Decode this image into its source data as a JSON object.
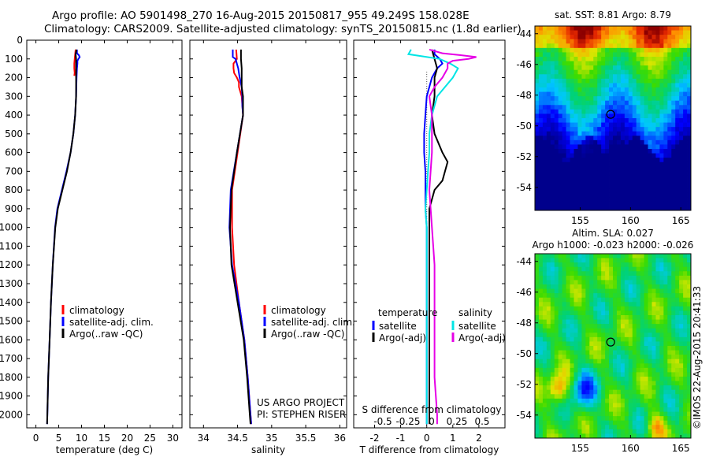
{
  "header": {
    "line1": "Argo profile: AO 5901498_270 16-Aug-2015 20150817_955 49.249S 158.028E",
    "line2": "Climatology: CARS2009. Satellite-adjusted climatology: synTS_20150815.nc (1.8d earlier)"
  },
  "timestamp": "©IMOS 22-Aug-2015 20:41:33",
  "colors": {
    "climatology": "#ff0000",
    "satellite": "#0000ff",
    "argo": "#000000",
    "sat_salinity": "#00e5e5",
    "argo_adj_salinity": "#e600e6"
  },
  "depth_axis": {
    "ticks": [
      0,
      100,
      200,
      300,
      400,
      500,
      600,
      700,
      800,
      900,
      1000,
      1100,
      1200,
      1300,
      1400,
      1500,
      1600,
      1700,
      1800,
      1900,
      2000
    ],
    "ylim": [
      0,
      2070
    ]
  },
  "chart_data": [
    {
      "type": "line",
      "id": "temperature",
      "xlabel": "temperature (deg C)",
      "xlim": [
        -2,
        32
      ],
      "xticks": [
        0,
        5,
        10,
        15,
        20,
        25,
        30
      ],
      "legend": [
        "climatology",
        "satellite-adj. clim.",
        "Argo(..raw -QC)"
      ],
      "series": [
        {
          "key": "climatology",
          "depth": [
            50,
            75,
            100,
            125,
            150,
            175,
            190
          ],
          "values": [
            8.7,
            8.6,
            8.5,
            8.4,
            8.4,
            8.5,
            8.4
          ]
        },
        {
          "key": "satellite",
          "depth": [
            50,
            70,
            80,
            90,
            100,
            110,
            125,
            150,
            200,
            300,
            400,
            500,
            600,
            700,
            800,
            900,
            1000,
            1200,
            1400,
            1600,
            1800,
            2000,
            2050
          ],
          "values": [
            9.0,
            9.0,
            9.4,
            9.6,
            9.3,
            9.1,
            9.1,
            9.0,
            8.9,
            8.8,
            8.6,
            8.2,
            7.6,
            6.7,
            5.7,
            4.7,
            4.2,
            3.7,
            3.3,
            3.0,
            2.7,
            2.5,
            2.45
          ]
        },
        {
          "key": "argo",
          "depth": [
            50,
            75,
            100,
            150,
            200,
            300,
            400,
            500,
            600,
            700,
            800,
            900,
            1000,
            1200,
            1400,
            1600,
            1800,
            2000,
            2050
          ],
          "values": [
            8.9,
            8.7,
            8.8,
            8.8,
            8.8,
            8.8,
            8.6,
            8.2,
            7.6,
            6.8,
            5.8,
            4.8,
            4.25,
            3.7,
            3.3,
            3.0,
            2.7,
            2.5,
            2.45
          ]
        }
      ]
    },
    {
      "type": "line",
      "id": "salinity",
      "xlabel": "salinity",
      "xlim": [
        33.8,
        36.1
      ],
      "xticks": [
        34,
        34.5,
        35,
        35.5,
        36
      ],
      "legend": [
        "climatology",
        "satellite-adj. clim.",
        "Argo(..raw -QC)"
      ],
      "annotations": [
        "US ARGO PROJECT",
        "PI: STEPHEN RISER"
      ],
      "series": [
        {
          "key": "climatology",
          "depth": [
            50,
            100,
            125,
            150,
            175,
            200,
            225,
            250,
            300,
            400,
            600,
            800,
            1000,
            1200,
            1400,
            1600,
            1800,
            2000,
            2050
          ],
          "values": [
            34.48,
            34.49,
            34.44,
            34.44,
            34.45,
            34.49,
            34.52,
            34.52,
            34.56,
            34.58,
            34.5,
            34.42,
            34.42,
            34.45,
            34.52,
            34.6,
            34.65,
            34.69,
            34.7
          ]
        },
        {
          "key": "satellite",
          "depth": [
            50,
            80,
            90,
            100,
            150,
            200,
            250,
            300,
            350,
            400,
            600,
            800,
            1000,
            1200,
            1400,
            1600,
            1800,
            2000,
            2050
          ],
          "values": [
            34.43,
            34.43,
            34.43,
            34.47,
            34.51,
            34.53,
            34.56,
            34.57,
            34.57,
            34.58,
            34.49,
            34.4,
            34.38,
            34.42,
            34.52,
            34.6,
            34.65,
            34.69,
            34.7
          ]
        },
        {
          "key": "argo",
          "depth": [
            50,
            100,
            150,
            200,
            250,
            300,
            350,
            400,
            600,
            800,
            1000,
            1200,
            1400,
            1600,
            1800,
            2000,
            2050
          ],
          "values": [
            34.55,
            34.55,
            34.56,
            34.56,
            34.56,
            34.58,
            34.58,
            34.58,
            34.49,
            34.41,
            34.39,
            34.41,
            34.5,
            34.59,
            34.64,
            34.68,
            34.69
          ]
        }
      ]
    },
    {
      "type": "line",
      "id": "difference",
      "xlabel": "T difference from climatology",
      "xlim": [
        -2.8,
        3.0
      ],
      "xticks": [
        -2,
        -1,
        0,
        1,
        2
      ],
      "top_label": "S difference from climatology",
      "top_ticks": [
        "-0.5",
        "-0.25",
        "0",
        "0.25",
        "0.5"
      ],
      "legend": {
        "temperature_title": "temperature",
        "salinity_title": "salinity",
        "temperature": [
          "satellite",
          "Argo(-adj)"
        ],
        "salinity": [
          "satellite",
          "Argo(-adj)"
        ]
      },
      "series": [
        {
          "key": "satellite",
          "depth": [
            50,
            75,
            100,
            125,
            150,
            200,
            300,
            400,
            500,
            600,
            700,
            800,
            900,
            1000,
            1200,
            1400,
            1600,
            1800,
            2000,
            2050
          ],
          "values": [
            0.3,
            0.3,
            0.5,
            0.6,
            0.4,
            0.2,
            0.0,
            -0.05,
            -0.1,
            -0.1,
            -0.05,
            -0.05,
            -0.05,
            0.0,
            0.0,
            0.0,
            0.0,
            0.0,
            0.0,
            0.0
          ]
        },
        {
          "key": "argo",
          "depth": [
            50,
            100,
            150,
            200,
            300,
            400,
            500,
            600,
            650,
            700,
            750,
            800,
            900,
            1000,
            1200,
            1400,
            1600,
            1800,
            2000,
            2050
          ],
          "values": [
            0.2,
            0.3,
            0.4,
            0.3,
            0.3,
            0.2,
            0.3,
            0.6,
            0.8,
            0.7,
            0.6,
            0.3,
            0.1,
            0.1,
            0.1,
            0.1,
            0.1,
            0.1,
            0.1,
            0.1
          ]
        },
        {
          "key": "sat_salinity",
          "depth": [
            50,
            75,
            100,
            125,
            150,
            200,
            250,
            300,
            400,
            500,
            600,
            700,
            800,
            900,
            1000,
            1200,
            1400,
            1600,
            1800,
            2000,
            2050
          ],
          "values": [
            -0.6,
            -0.7,
            0.5,
            0.9,
            1.2,
            1.0,
            0.7,
            0.4,
            0.2,
            0.1,
            0.1,
            0.05,
            0.0,
            -0.05,
            0.0,
            0.0,
            0.0,
            0.0,
            0.0,
            0.0,
            0.0
          ]
        },
        {
          "key": "argo_adj_salinity",
          "depth": [
            50,
            70,
            80,
            90,
            100,
            110,
            125,
            150,
            200,
            250,
            300,
            400,
            600,
            800,
            1000,
            1200,
            1400,
            1600,
            1800,
            2000,
            2050
          ],
          "values": [
            0.1,
            0.6,
            1.3,
            1.9,
            1.6,
            1.0,
            0.8,
            0.8,
            0.6,
            0.3,
            0.1,
            0.2,
            0.2,
            0.1,
            0.2,
            0.3,
            0.3,
            0.3,
            0.3,
            0.4,
            0.4
          ]
        }
      ]
    },
    {
      "type": "heatmap",
      "id": "sst_map",
      "title": "sat. SST: 8.81  Argo: 8.79",
      "xlim": [
        150.5,
        166
      ],
      "ylim": [
        -55.5,
        -43.5
      ],
      "xticks": [
        155,
        160,
        165
      ],
      "yticks": [
        -44,
        -46,
        -48,
        -50,
        -52,
        -54
      ],
      "marker": {
        "lon": 158.028,
        "lat": -49.249
      }
    },
    {
      "type": "heatmap",
      "id": "sla_map",
      "title": "Altim. SLA: 0.027",
      "subtitle": "Argo h1000: -0.023 h2000: -0.026",
      "xlim": [
        150.5,
        166
      ],
      "ylim": [
        -55.5,
        -43.5
      ],
      "xticks": [
        155,
        160,
        165
      ],
      "yticks": [
        -44,
        -46,
        -48,
        -50,
        -52,
        -54
      ],
      "marker": {
        "lon": 158.028,
        "lat": -49.249
      }
    }
  ]
}
